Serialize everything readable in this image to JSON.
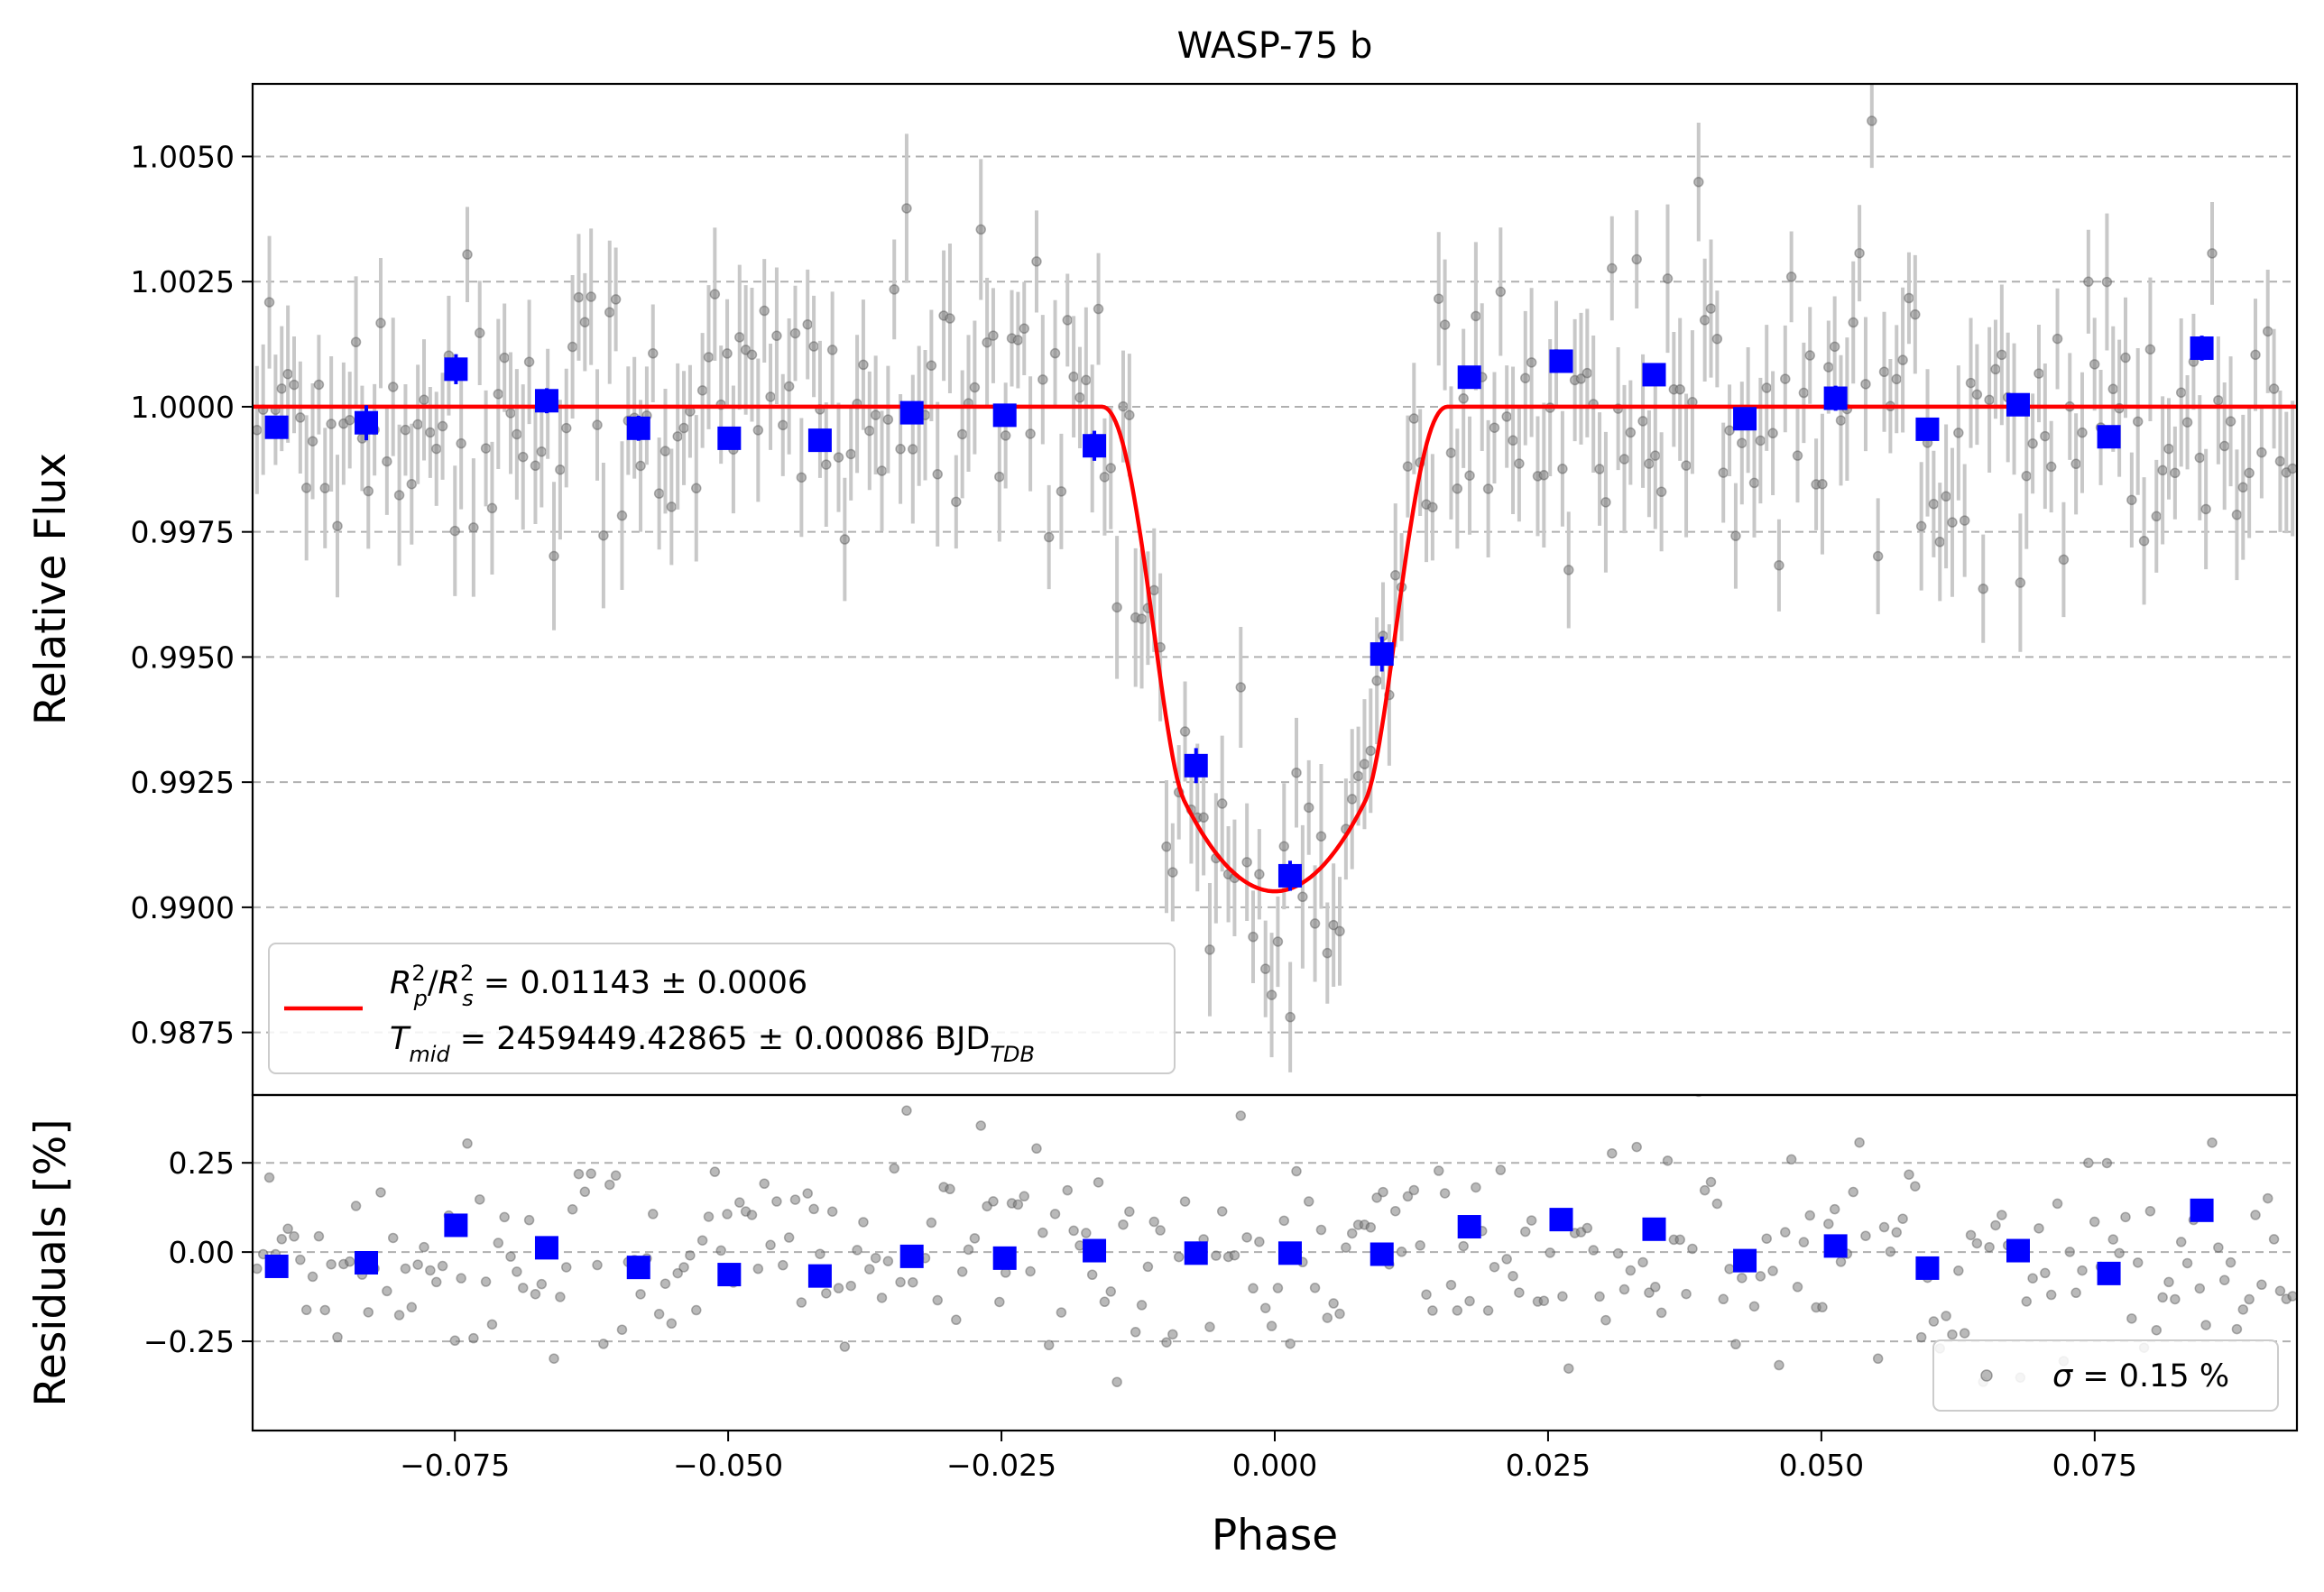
{
  "title": "WASP-75 b",
  "colors": {
    "model": "#ff0000",
    "binned": "#0000ff",
    "raw_point": "#808080",
    "raw_error": "#c8c8c8",
    "grid": "#b0b0b0"
  },
  "chart_data": [
    {
      "type": "scatter",
      "panel": "light-curve",
      "xlabel": "",
      "ylabel": "Relative Flux",
      "xlim": [
        -0.0935,
        0.0935
      ],
      "ylim": [
        0.98625,
        1.00645
      ],
      "yticks": [
        0.9875,
        0.99,
        0.9925,
        0.995,
        0.9975,
        1.0,
        1.0025,
        1.005
      ],
      "ytick_labels": [
        "0.9875",
        "0.9900",
        "0.9925",
        "0.9950",
        "0.9975",
        "1.0000",
        "1.0025",
        "1.0050"
      ],
      "grid": "horizontal dashed",
      "legend": {
        "placement": "lower-left",
        "line1_sub_p": "p",
        "line1_sub_s": "s",
        "line1_sup": "2",
        "line1_value": " = 0.01143 ± 0.0006",
        "line2_sub": "mid",
        "line2_value": " = 2459449.42865 ± 0.00086 BJD",
        "line2_unit_sub": "TDB"
      },
      "model": {
        "t0": 0.0,
        "half_duration": 0.0158,
        "ingress": 0.0075,
        "depth": 0.00968,
        "points": [
          [
            -0.0935,
            1.0
          ],
          [
            -0.0158,
            1.0
          ],
          [
            -0.014,
            0.99896
          ],
          [
            -0.012,
            0.99676
          ],
          [
            -0.01,
            0.99418
          ],
          [
            -0.0083,
            0.992
          ],
          [
            -0.007,
            0.9911
          ],
          [
            -0.005,
            0.99061
          ],
          [
            -0.003,
            0.9904
          ],
          [
            0.0,
            0.99032
          ],
          [
            0.003,
            0.9904
          ],
          [
            0.005,
            0.99061
          ],
          [
            0.007,
            0.9911
          ],
          [
            0.0083,
            0.992
          ],
          [
            0.01,
            0.99418
          ],
          [
            0.012,
            0.99676
          ],
          [
            0.014,
            0.99896
          ],
          [
            0.0158,
            1.0
          ],
          [
            0.0935,
            1.0
          ]
        ]
      },
      "binned": {
        "x": [
          -0.0913,
          -0.0831,
          -0.0749,
          -0.0666,
          -0.0582,
          -0.0499,
          -0.0416,
          -0.0332,
          -0.0247,
          -0.0165,
          -0.0072,
          0.0014,
          0.0098,
          0.0178,
          0.0262,
          0.0347,
          0.043,
          0.0513,
          0.0597,
          0.068,
          0.0763,
          0.0848
        ],
        "y": [
          0.99959,
          0.99968,
          1.00075,
          1.00012,
          0.99957,
          0.99937,
          0.99933,
          0.99988,
          0.99983,
          0.99922,
          0.99283,
          0.99063,
          0.99506,
          1.00059,
          1.00091,
          1.00064,
          0.99976,
          1.00017,
          0.99955,
          1.00004,
          0.9994,
          1.00117
        ],
        "err": [
          0.0002,
          0.00035,
          0.0003,
          0.00025,
          0.00025,
          0.0002,
          0.0002,
          0.0002,
          0.0002,
          0.0003,
          0.00035,
          0.0003,
          0.00035,
          0.0002,
          0.0002,
          0.0002,
          0.0002,
          0.00025,
          0.0002,
          0.0002,
          0.0002,
          0.00025
        ]
      }
    },
    {
      "type": "scatter",
      "panel": "residuals",
      "xlabel": "Phase",
      "ylabel": "Residuals [%]",
      "xlim": [
        -0.0935,
        0.0935
      ],
      "ylim": [
        -0.5,
        0.44
      ],
      "yticks": [
        -0.25,
        0.0,
        0.25
      ],
      "ytick_labels": [
        "−0.25",
        "0.00",
        "0.25"
      ],
      "xticks": [
        -0.075,
        -0.05,
        -0.025,
        0.0,
        0.025,
        0.05,
        0.075
      ],
      "xtick_labels": [
        "−0.075",
        "−0.050",
        "−0.025",
        "0.000",
        "0.025",
        "0.050",
        "0.075"
      ],
      "grid": "horizontal dashed",
      "legend": {
        "placement": "lower-right",
        "symbol": "σ",
        "value": " = 0.15 %"
      },
      "binned": {
        "x": [
          -0.0913,
          -0.0831,
          -0.0749,
          -0.0666,
          -0.0582,
          -0.0499,
          -0.0416,
          -0.0332,
          -0.0247,
          -0.0165,
          -0.0072,
          0.0014,
          0.0098,
          0.0178,
          0.0262,
          0.0347,
          0.043,
          0.0513,
          0.0597,
          0.068,
          0.0763,
          0.0848
        ],
        "y": [
          -0.04,
          -0.03,
          0.075,
          0.012,
          -0.043,
          -0.063,
          -0.067,
          -0.012,
          -0.017,
          0.004,
          -0.003,
          -0.003,
          -0.006,
          0.071,
          0.091,
          0.064,
          -0.024,
          0.017,
          -0.045,
          0.004,
          -0.06,
          0.117
        ]
      }
    }
  ]
}
